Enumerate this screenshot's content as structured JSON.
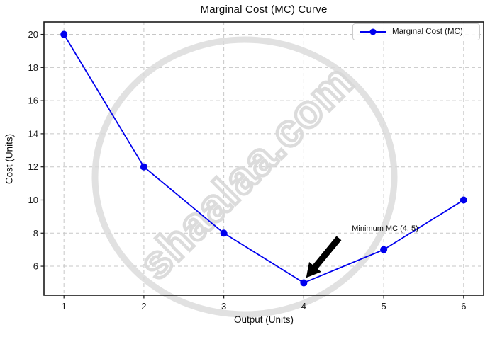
{
  "figure": {
    "title": "Marginal Cost (MC) Curve",
    "xlabel": "Output (Units)",
    "ylabel": "Cost (Units)"
  },
  "watermark": {
    "text": "shaalaa.com"
  },
  "legend": {
    "label": "Marginal Cost (MC)"
  },
  "chart_data": {
    "type": "line",
    "title": "Marginal Cost (MC) Curve",
    "xlabel": "Output (Units)",
    "ylabel": "Cost (Units)",
    "series": [
      {
        "name": "Marginal Cost (MC)",
        "x": [
          1,
          2,
          3,
          4,
          5,
          6
        ],
        "y": [
          20,
          12,
          8,
          5,
          7,
          10
        ],
        "marker": "circle"
      }
    ],
    "xticks": [
      1,
      2,
      3,
      4,
      5,
      6
    ],
    "yticks": [
      6,
      8,
      10,
      12,
      14,
      16,
      18,
      20
    ],
    "xlim": [
      0.75,
      6.25
    ],
    "ylim": [
      4.25,
      20.75
    ],
    "grid": true,
    "legend_position": "upper right",
    "annotation": {
      "text": "Minimum MC (4, 5)",
      "point_xy": [
        4,
        5
      ],
      "text_xy": [
        5.02,
        8.2
      ],
      "arrow_tail_xy": [
        4.44,
        7.7
      ],
      "arrow_tip_xy": [
        4.03,
        5.3
      ]
    },
    "colors": {
      "line": "#0000ee",
      "grid": "#c7c7c7",
      "axis": "#1a1a1a",
      "text": "#1a1a1a",
      "annotation_arrow": "#000000",
      "watermark": "#d9d9d9"
    }
  }
}
